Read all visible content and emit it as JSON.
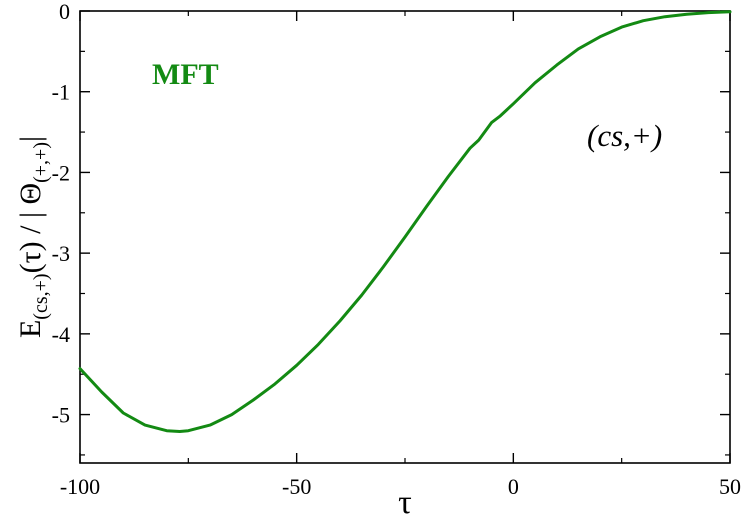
{
  "chart_data": {
    "type": "line",
    "title": "",
    "xlabel": "τ",
    "ylabel": {
      "main": "E",
      "main_sub": "(cs,+)",
      "mid": "(τ) / | Θ",
      "mid_sub": "(+,+)",
      "end": "|"
    },
    "xlim": [
      -100,
      50
    ],
    "ylim": [
      -5.6,
      0
    ],
    "xticks": [
      -100,
      -50,
      0,
      50
    ],
    "xtick_labels": [
      "-100",
      "-50",
      "0",
      "50"
    ],
    "yticks": [
      0,
      -1,
      -2,
      -3,
      -4,
      -5
    ],
    "ytick_labels": [
      "0",
      "-1",
      "-2",
      "-3",
      "-4",
      "-5"
    ],
    "grid": false,
    "legend": "none",
    "series": [
      {
        "name": "MFT",
        "color": "#138a13",
        "x": [
          -100,
          -95,
          -90,
          -85,
          -80,
          -77,
          -75,
          -70,
          -65,
          -60,
          -55,
          -50,
          -45,
          -40,
          -35,
          -30,
          -25,
          -20,
          -15,
          -10,
          -8,
          -5,
          -3,
          0,
          5,
          10,
          15,
          20,
          25,
          30,
          35,
          40,
          45,
          50
        ],
        "y": [
          -4.43,
          -4.72,
          -4.98,
          -5.13,
          -5.2,
          -5.21,
          -5.2,
          -5.13,
          -5.0,
          -4.82,
          -4.62,
          -4.39,
          -4.13,
          -3.84,
          -3.52,
          -3.17,
          -2.8,
          -2.42,
          -2.05,
          -1.7,
          -1.6,
          -1.38,
          -1.3,
          -1.15,
          -0.89,
          -0.67,
          -0.47,
          -0.32,
          -0.2,
          -0.12,
          -0.07,
          -0.04,
          -0.02,
          -0.01
        ]
      }
    ],
    "annotations": [
      {
        "text": "MFT",
        "color": "#138a13"
      },
      {
        "text": "(cs,+)",
        "color": "#000000"
      }
    ]
  }
}
